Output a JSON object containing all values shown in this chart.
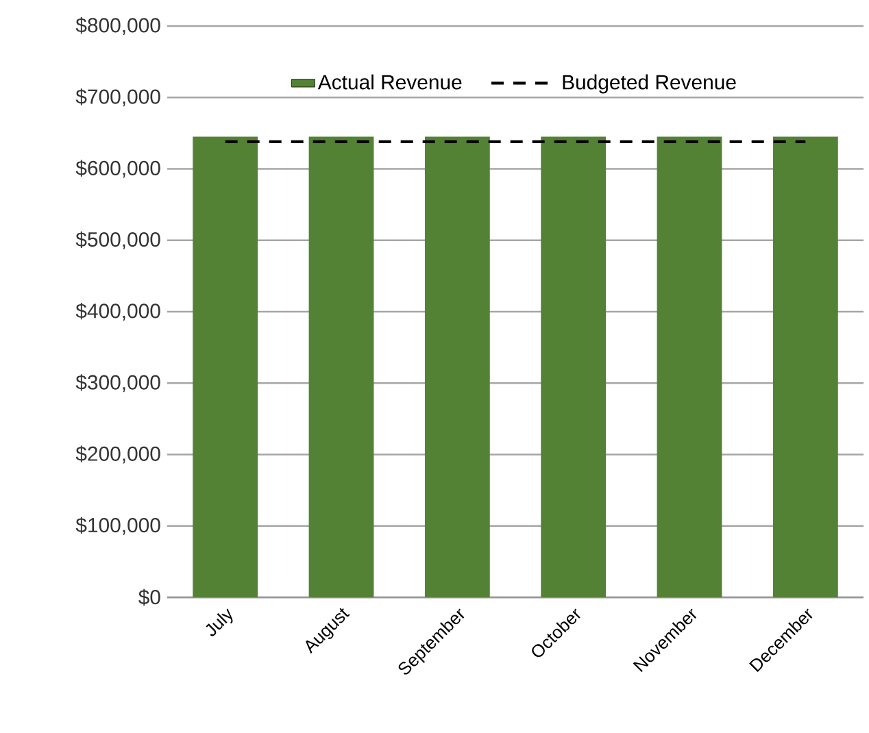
{
  "chart_data": {
    "type": "bar",
    "categories": [
      "July",
      "August",
      "September",
      "October",
      "November",
      "December"
    ],
    "series": [
      {
        "name": "Actual Revenue",
        "color": "#548235",
        "values": [
          645000,
          645000,
          645000,
          645000,
          645000,
          645000
        ]
      },
      {
        "name": "Budgeted Revenue",
        "type": "line",
        "color": "#000000",
        "line_style": "dashed",
        "values": [
          638000,
          638000,
          638000,
          638000,
          638000,
          638000
        ]
      }
    ],
    "ylim": [
      0,
      800000
    ],
    "yticks": [
      {
        "value": 0,
        "label": "$0"
      },
      {
        "value": 100000,
        "label": "$100,000"
      },
      {
        "value": 200000,
        "label": "$200,000"
      },
      {
        "value": 300000,
        "label": "$300,000"
      },
      {
        "value": 400000,
        "label": "$400,000"
      },
      {
        "value": 500000,
        "label": "$500,000"
      },
      {
        "value": 600000,
        "label": "$600,000"
      },
      {
        "value": 700000,
        "label": "$700,000"
      },
      {
        "value": 800000,
        "label": "$800,000"
      }
    ],
    "grid": "y",
    "legend": "top",
    "marker": "none"
  }
}
